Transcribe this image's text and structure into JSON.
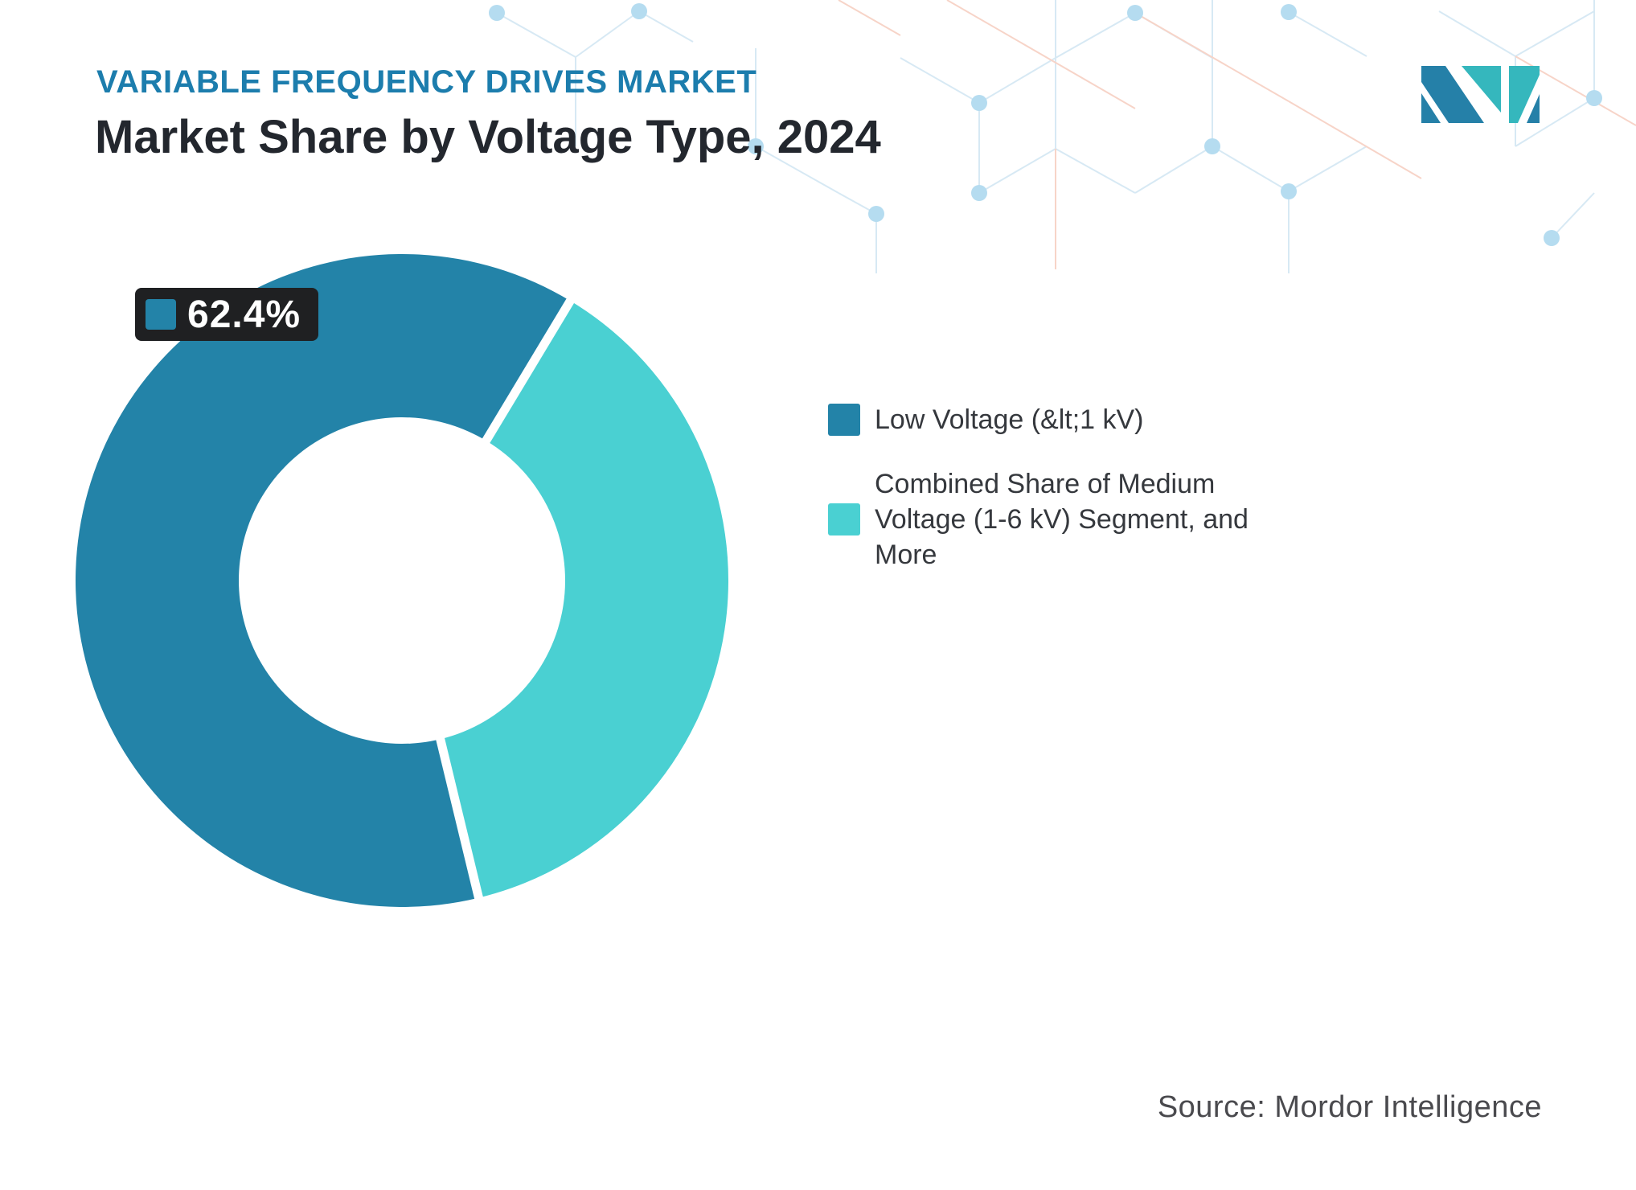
{
  "header": {
    "eyebrow": "VARIABLE FREQUENCY DRIVES MARKET",
    "title": "Market Share by Voltage Type, 2024"
  },
  "logo": {
    "name": "mordor-intelligence-logo",
    "blue": "#2580a8",
    "teal": "#35b7bd"
  },
  "chart_data": {
    "type": "pie",
    "subtype": "donut",
    "title": "Market Share by Voltage Type, 2024",
    "unit": "%",
    "series": [
      {
        "name": "Low Voltage (&lt;1 kV)",
        "value": 62.4,
        "color": "#2383a8"
      },
      {
        "name": "Combined Share of Medium Voltage (1-6 kV) Segment, and More",
        "value": 37.6,
        "color": "#4ad0d2"
      }
    ],
    "data_label": "62.4%",
    "data_label_series_index": 0,
    "inner_radius_pct": 50,
    "start_angle_deg": 166.4,
    "slice_gap_color": "#ffffff",
    "legend_position": "right",
    "source": "Source: Mordor Intelligence"
  },
  "pattern_colors": {
    "line_blue": "#d7e9f4",
    "line_salmon": "#f7d4c8",
    "dot_blue": "#b5dcf0"
  }
}
